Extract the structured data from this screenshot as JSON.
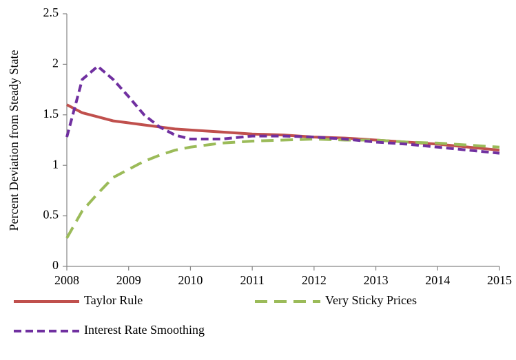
{
  "chart_data": {
    "type": "line",
    "y_label": "Percent Deviation from Steady State",
    "x": [
      2008,
      2008.25,
      2008.5,
      2008.75,
      2009,
      2009.25,
      2009.5,
      2009.75,
      2010,
      2010.5,
      2011,
      2011.5,
      2012,
      2012.5,
      2013,
      2013.5,
      2014,
      2014.5,
      2015
    ],
    "series": [
      {
        "name": "Taylor Rule",
        "color": "#c0504d",
        "dash": "solid",
        "values": [
          1.6,
          1.52,
          1.48,
          1.44,
          1.42,
          1.4,
          1.38,
          1.36,
          1.35,
          1.33,
          1.31,
          1.3,
          1.28,
          1.27,
          1.25,
          1.23,
          1.21,
          1.18,
          1.15
        ]
      },
      {
        "name": "Very Sticky Prices",
        "color": "#9bbb59",
        "dash": "long",
        "values": [
          0.28,
          0.55,
          0.72,
          0.88,
          0.96,
          1.04,
          1.1,
          1.15,
          1.18,
          1.22,
          1.24,
          1.25,
          1.26,
          1.25,
          1.25,
          1.23,
          1.22,
          1.2,
          1.18
        ]
      },
      {
        "name": "Interest Rate Smoothing",
        "color": "#7030a0",
        "dash": "short",
        "values": [
          1.28,
          1.85,
          1.98,
          1.85,
          1.68,
          1.5,
          1.38,
          1.3,
          1.26,
          1.26,
          1.29,
          1.29,
          1.28,
          1.26,
          1.23,
          1.21,
          1.18,
          1.15,
          1.12
        ]
      }
    ],
    "xlim": [
      2008,
      2015
    ],
    "xticks": [
      2008,
      2009,
      2010,
      2011,
      2012,
      2013,
      2014,
      2015
    ],
    "ylim": [
      0,
      2.5
    ],
    "yticks": [
      0,
      0.5,
      1,
      1.5,
      2,
      2.5
    ],
    "grid": false,
    "legend": "bottom"
  }
}
